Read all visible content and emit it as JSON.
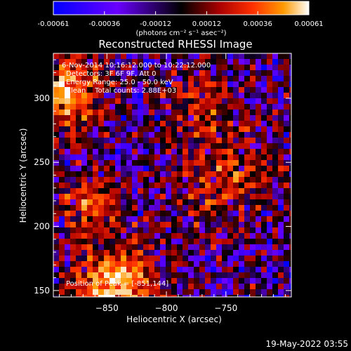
{
  "colorbar": {
    "ticks": [
      "-0.00061",
      "-0.00036",
      "-0.00012",
      "0.00012",
      "0.00036",
      "0.00061"
    ],
    "unit_label": "(photons cm⁻² s⁻¹ asec⁻²)"
  },
  "chart_data": {
    "type": "heatmap",
    "title": "Reconstructed RHESSI Image",
    "xlabel": "Heliocentric X (arcsec)",
    "ylabel": "Heliocentric Y (arcsec)",
    "xlim": [
      -895,
      -695
    ],
    "ylim": [
      145,
      335
    ],
    "xticks": [
      -850,
      -800,
      -750
    ],
    "yticks": [
      150,
      200,
      250,
      300
    ],
    "zlim": [
      -0.00061,
      0.00061
    ],
    "colormap": [
      "#0000ff",
      "#6a00ff",
      "#000000",
      "#aa0000",
      "#ff3000",
      "#ff9a00",
      "#ffffff"
    ],
    "peak": [
      -851,
      144
    ]
  },
  "annotations": {
    "time_range": "6-Nov-2014 10:16:12.000 to 10:22:12.000",
    "detectors": "Detectors: 3F 6F 9F, Att 0",
    "energy": "Energy Range: 25.0 - 50.0 keV",
    "clean": "Clean    Total counts: 2.88E+03",
    "peak_position": "Position of Peak = [-851,144]"
  },
  "footer": {
    "timestamp": "19-May-2022 03:55"
  }
}
